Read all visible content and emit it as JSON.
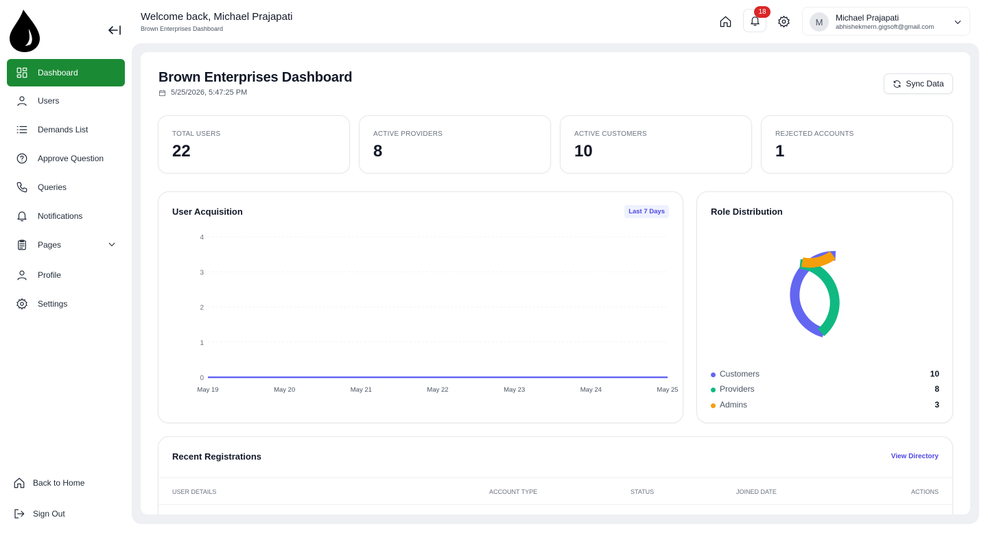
{
  "sidebar": {
    "items": [
      {
        "label": "Dashboard",
        "icon": "dashboard-grid-icon"
      },
      {
        "label": "Users",
        "icon": "user-icon"
      },
      {
        "label": "Demands List",
        "icon": "list-icon"
      },
      {
        "label": "Approve Question",
        "icon": "question-circle-icon"
      },
      {
        "label": "Queries",
        "icon": "phone-icon"
      },
      {
        "label": "Notifications",
        "icon": "bell-icon"
      },
      {
        "label": "Pages",
        "icon": "clipboard-icon"
      },
      {
        "label": "Profile",
        "icon": "user-icon"
      },
      {
        "label": "Settings",
        "icon": "gear-icon"
      }
    ],
    "bottom": [
      {
        "label": "Back to Home",
        "icon": "home-icon"
      },
      {
        "label": "Sign Out",
        "icon": "sign-out-icon"
      }
    ]
  },
  "header": {
    "title": "Welcome back, Michael Prajapati",
    "subtitle": "Brown Enterprises Dashboard",
    "notification_count": "18",
    "user": {
      "initial": "M",
      "name": "Michael Prajapati",
      "email": "abhishekmern.gigsoft@gmail.com"
    }
  },
  "main": {
    "title": "Brown Enterprises Dashboard",
    "datetime": "5/25/2026, 5:47:25 PM",
    "sync_label": "Sync Data",
    "stats": [
      {
        "label": "Total Users",
        "value": "22"
      },
      {
        "label": "Active Providers",
        "value": "8"
      },
      {
        "label": "Active Customers",
        "value": "10"
      },
      {
        "label": "Rejected Accounts",
        "value": "1"
      }
    ],
    "acquisition": {
      "title": "User Acquisition",
      "range": "Last 7 Days"
    },
    "roles": {
      "title": "Role Distribution",
      "items": [
        {
          "label": "Customers",
          "value": "10"
        },
        {
          "label": "Providers",
          "value": "8"
        },
        {
          "label": "Admins",
          "value": "3"
        }
      ]
    },
    "recent": {
      "title": "Recent Registrations",
      "view_all": "View Directory",
      "columns": [
        "User Details",
        "Account Type",
        "Status",
        "Joined Date",
        "Actions"
      ]
    }
  },
  "colors": {
    "brand_green": "#1b8a35",
    "customers": "#6366f1",
    "providers": "#10b981",
    "admins": "#f59e0b",
    "badge": "#dc2626"
  },
  "chart_data": [
    {
      "type": "line",
      "title": "User Acquisition",
      "categories": [
        "May 19",
        "May 20",
        "May 21",
        "May 22",
        "May 23",
        "May 24",
        "May 25"
      ],
      "values": [
        0,
        0,
        0,
        0,
        0,
        0,
        0
      ],
      "yticks": [
        "0",
        "1",
        "2",
        "3",
        "4"
      ],
      "ylim": [
        0,
        4
      ],
      "grid": true
    },
    {
      "type": "pie",
      "title": "Role Distribution",
      "labels": [
        "Customers",
        "Providers",
        "Admins"
      ],
      "values": [
        10,
        8,
        3
      ]
    }
  ]
}
